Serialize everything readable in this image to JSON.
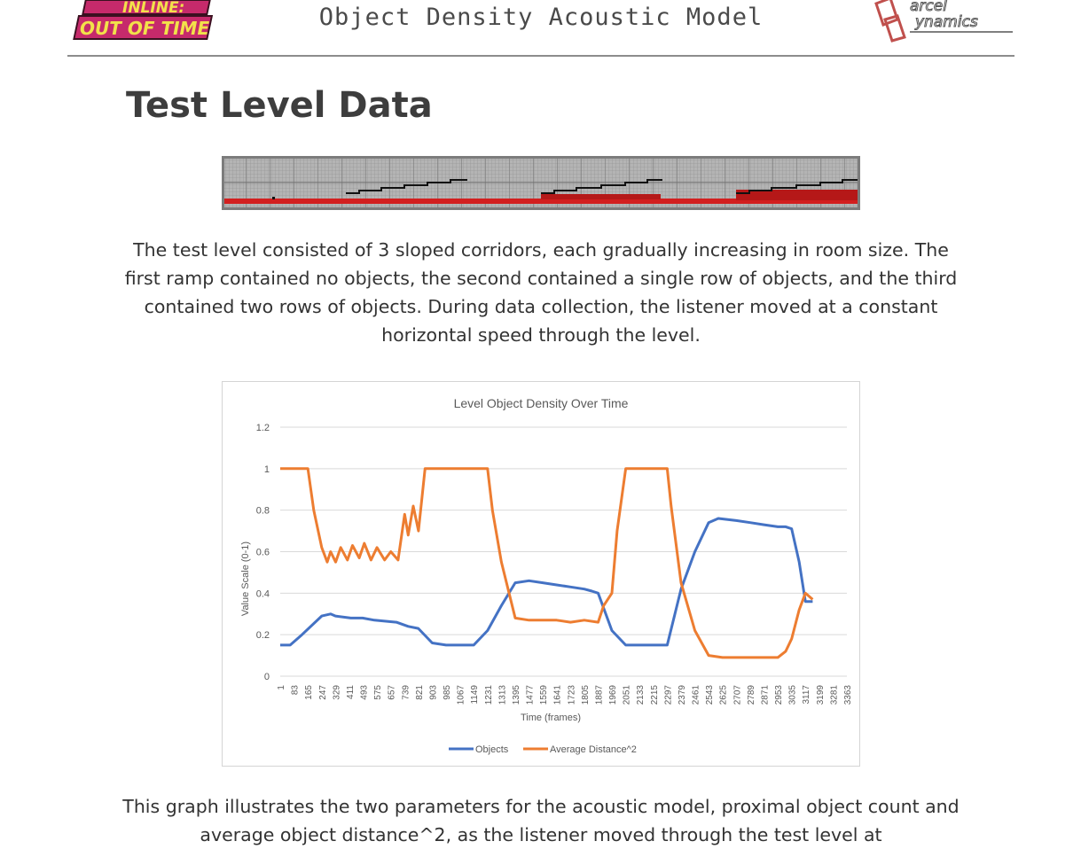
{
  "header": {
    "title": "Object Density Acoustic Model",
    "logo_left_text_top": "INLINE:",
    "logo_left_text_bottom": "OUT OF TIME",
    "logo_right_text_top": "arcel",
    "logo_right_text_bottom": "ynamics"
  },
  "section": {
    "heading": "Test Level Data",
    "paragraph1": "The test level consisted of 3 sloped corridors, each gradually increasing in room size. The first ramp contained no objects, the second contained a single row of objects, and the third contained two rows of objects. During data collection, the listener moved at a constant horizontal speed through the level.",
    "paragraph2": "This graph illustrates the two parameters for the acoustic model, proximal object count and average object distance^2, as the listener moved through the test level at"
  },
  "colors": {
    "series_objects": "#4472c4",
    "series_distance": "#ed7d31",
    "grid": "#d9d9d9",
    "header_rule": "#8c8c8c",
    "logo_left": "#c62a6b",
    "logo_left_text": "#f2e14a",
    "logo_right": "#c0504d"
  },
  "chart_data": {
    "type": "line",
    "title": "Level Object Density Over Time",
    "xlabel": "Time (frames)",
    "ylabel": "Value Scale (0-1)",
    "ylim": [
      0,
      1.2
    ],
    "yticks": [
      "0",
      "0.2",
      "0.4",
      "0.6",
      "0.8",
      "1",
      "1.2"
    ],
    "xlim": [
      1,
      3363
    ],
    "xticks": [
      "1",
      "83",
      "165",
      "247",
      "329",
      "411",
      "493",
      "575",
      "657",
      "739",
      "821",
      "903",
      "985",
      "1067",
      "1149",
      "1231",
      "1313",
      "1395",
      "1477",
      "1559",
      "1641",
      "1723",
      "1805",
      "1887",
      "1969",
      "2051",
      "2133",
      "2215",
      "2297",
      "2379",
      "2461",
      "2543",
      "2625",
      "2707",
      "2789",
      "2871",
      "2953",
      "3035",
      "3117",
      "3199",
      "3281",
      "3363"
    ],
    "legend_position": "bottom",
    "grid": true,
    "series": [
      {
        "name": "Objects",
        "x": [
          1,
          60,
          130,
          247,
          300,
          329,
          420,
          490,
          560,
          690,
          760,
          820,
          903,
          985,
          1149,
          1231,
          1313,
          1395,
          1477,
          1559,
          1641,
          1723,
          1805,
          1850,
          1887,
          1969,
          2051,
          2133,
          2215,
          2297,
          2379,
          2461,
          2543,
          2600,
          2707,
          2789,
          2871,
          2953,
          3000,
          3035,
          3080,
          3117,
          3160
        ],
        "y": [
          0.15,
          0.15,
          0.2,
          0.29,
          0.3,
          0.29,
          0.28,
          0.28,
          0.27,
          0.26,
          0.24,
          0.23,
          0.16,
          0.15,
          0.15,
          0.22,
          0.34,
          0.45,
          0.46,
          0.45,
          0.44,
          0.43,
          0.42,
          0.41,
          0.4,
          0.22,
          0.15,
          0.15,
          0.15,
          0.15,
          0.42,
          0.6,
          0.74,
          0.76,
          0.75,
          0.74,
          0.73,
          0.72,
          0.72,
          0.71,
          0.55,
          0.36,
          0.36
        ]
      },
      {
        "name": "Average Distance^2",
        "x": [
          1,
          150,
          165,
          200,
          247,
          280,
          300,
          330,
          360,
          400,
          430,
          470,
          500,
          540,
          575,
          620,
          657,
          700,
          739,
          760,
          790,
          821,
          860,
          903,
          985,
          1067,
          1149,
          1231,
          1260,
          1313,
          1395,
          1477,
          1559,
          1641,
          1723,
          1805,
          1887,
          1920,
          1969,
          2000,
          2051,
          2133,
          2215,
          2297,
          2320,
          2379,
          2461,
          2543,
          2625,
          2707,
          2789,
          2871,
          2953,
          3000,
          3035,
          3080,
          3117,
          3160
        ],
        "y": [
          1,
          1,
          1,
          0.8,
          0.62,
          0.55,
          0.6,
          0.55,
          0.62,
          0.56,
          0.63,
          0.57,
          0.64,
          0.56,
          0.62,
          0.56,
          0.6,
          0.56,
          0.78,
          0.68,
          0.82,
          0.7,
          1,
          1,
          1,
          1,
          1,
          1,
          0.8,
          0.55,
          0.28,
          0.27,
          0.27,
          0.27,
          0.26,
          0.27,
          0.26,
          0.34,
          0.4,
          0.7,
          1,
          1,
          1,
          1,
          0.82,
          0.45,
          0.22,
          0.1,
          0.09,
          0.09,
          0.09,
          0.09,
          0.09,
          0.12,
          0.18,
          0.32,
          0.4,
          0.37
        ]
      }
    ]
  }
}
